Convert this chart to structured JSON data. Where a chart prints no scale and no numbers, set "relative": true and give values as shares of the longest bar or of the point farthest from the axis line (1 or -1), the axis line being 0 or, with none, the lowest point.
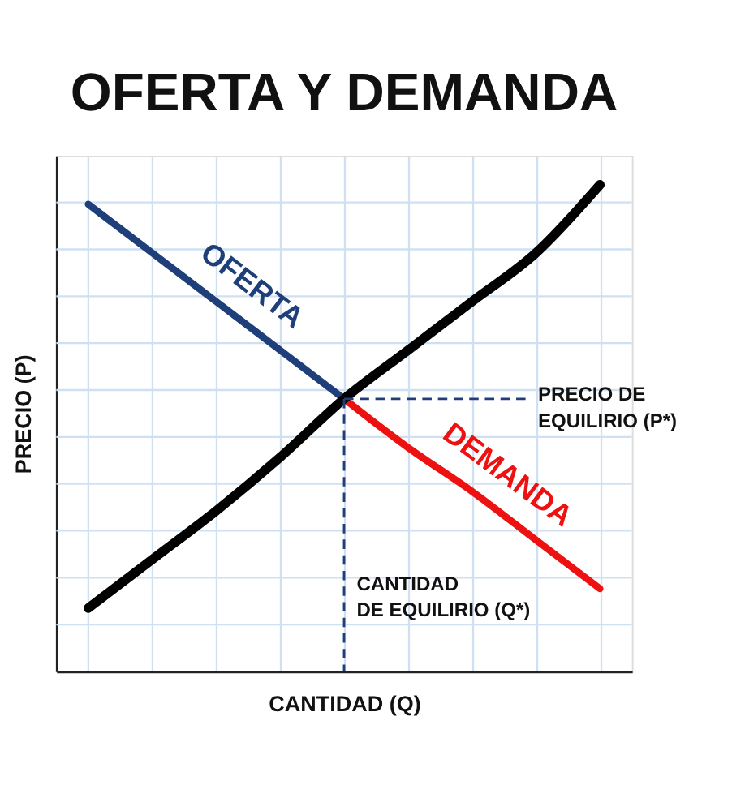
{
  "chart_data": {
    "type": "line",
    "title": "OFERTA Y DEMANDA",
    "xlabel": "CANTIDAD (Q)",
    "ylabel": "PRECIO (P)",
    "relative": true,
    "grid": true,
    "categories": [
      null,
      null,
      null,
      null,
      null,
      null,
      null,
      null,
      null
    ],
    "series": [
      {
        "name": "OFERTA",
        "color": "#1f3f7a",
        "values": [
          0.96,
          0.86,
          0.76,
          0.66,
          0.56,
          null,
          null,
          null,
          null
        ]
      },
      {
        "name": "DEMANDA",
        "color": "#ee1111",
        "values": [
          null,
          null,
          null,
          null,
          0.56,
          0.46,
          0.37,
          0.27,
          0.17
        ]
      },
      {
        "color": "#000000",
        "values": [
          0.13,
          0.23,
          0.33,
          0.44,
          0.56,
          0.66,
          0.76,
          0.86,
          1.0
        ]
      }
    ],
    "ref_lines": [
      {
        "axis": "y",
        "value": 0.56,
        "label": "PRECIO DE\nEQUILIRIO (P*)",
        "color": "#1f3f7a",
        "line_style": "dashed"
      }
    ],
    "annotations": [
      "CANTIDAD\nDE EQUILIRIO (Q*)"
    ]
  }
}
